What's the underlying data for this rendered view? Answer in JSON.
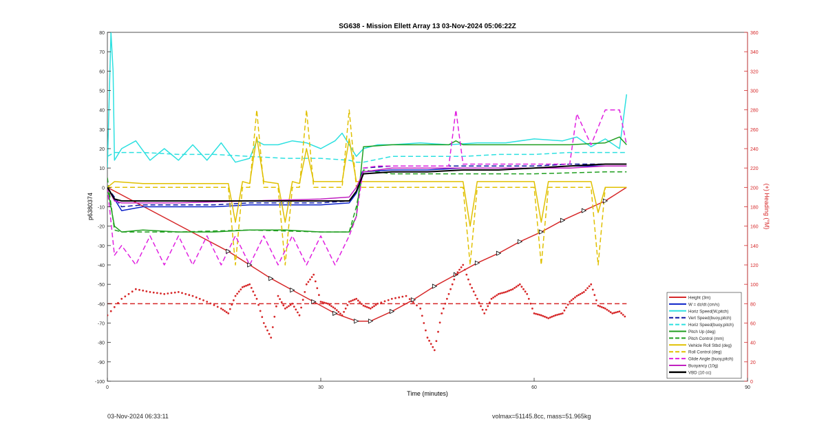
{
  "footer": {
    "left": "03-Nov-2024 06:33:11",
    "right": "volmax=51145.8cc, mass=51.965kg"
  },
  "chart_data": {
    "type": "line",
    "title": "SG638 - Mission Ellett Array 13 03-Nov-2024 05:06:22Z",
    "xlabel": "Time (minutes)",
    "ylabel": "p6380374",
    "y2label": "(+) Heading (°M)",
    "xlim": [
      0,
      90
    ],
    "ylim": [
      -100,
      80
    ],
    "y2lim": [
      0,
      360
    ],
    "xticks": [
      0,
      30,
      60,
      90
    ],
    "yticks": [
      -100,
      -90,
      -80,
      -70,
      -60,
      -50,
      -40,
      -30,
      -20,
      -10,
      0,
      10,
      20,
      30,
      40,
      50,
      60,
      70,
      80
    ],
    "y2ticks": [
      0,
      20,
      40,
      60,
      80,
      100,
      120,
      140,
      160,
      180,
      200,
      220,
      240,
      260,
      280,
      300,
      320,
      340,
      360
    ],
    "colors": {
      "right_axis": "#d62728"
    },
    "legend_position": "bottom-right",
    "series": [
      {
        "name": "Height (3m)",
        "color": "#d62728",
        "style": "solid",
        "width": 1.5,
        "x": [
          0,
          17,
          20,
          23,
          26,
          29,
          32,
          35,
          37,
          40,
          43,
          46,
          49,
          52,
          55,
          58,
          61,
          64,
          67,
          70,
          73
        ],
        "y": [
          0,
          -33,
          -40,
          -47,
          -53,
          -59,
          -65,
          -69,
          -69,
          -64,
          -58,
          -51,
          -45,
          -39,
          -34,
          -28,
          -23,
          -17,
          -12,
          -7,
          0
        ]
      },
      {
        "name": "W = dz/dt (cm/s)",
        "color": "#0a20c8",
        "style": "solid",
        "width": 1.5,
        "x": [
          0,
          1,
          2,
          5,
          10,
          15,
          20,
          25,
          30,
          34,
          35,
          36,
          40,
          45,
          50,
          55,
          60,
          65,
          70,
          73
        ],
        "y": [
          0,
          -6,
          -12,
          -10,
          -10,
          -10,
          -9,
          -9,
          -9,
          -8,
          -3,
          8,
          9,
          9,
          10,
          10,
          10,
          11,
          11,
          11
        ]
      },
      {
        "name": "Horiz Speed(W,pitch)",
        "color": "#2ce0e0",
        "style": "solid",
        "width": 1.5,
        "x": [
          0,
          0.5,
          0.8,
          1,
          2,
          4,
          6,
          8,
          10,
          12,
          14,
          16,
          18,
          20,
          21,
          22,
          24,
          26,
          28,
          30,
          32,
          33,
          34,
          35,
          36,
          38,
          40,
          44,
          48,
          52,
          56,
          60,
          64,
          66,
          68,
          70,
          72,
          73
        ],
        "y": [
          10,
          80,
          60,
          14,
          20,
          24,
          14,
          20,
          14,
          22,
          14,
          23,
          13,
          15,
          24,
          22,
          22,
          24,
          23,
          20,
          24,
          28,
          22,
          16,
          20,
          22,
          22,
          23,
          22,
          23,
          23,
          25,
          24,
          26,
          21,
          25,
          20,
          48
        ]
      },
      {
        "name": "Vert Speed(buoy,pitch)",
        "color": "#0a14a0",
        "style": "dashed",
        "width": 1.5,
        "x": [
          0,
          1,
          2,
          5,
          10,
          15,
          20,
          25,
          30,
          34,
          35,
          36,
          40,
          45,
          50,
          55,
          60,
          65,
          70,
          73
        ],
        "y": [
          0,
          -5,
          -10,
          -9,
          -9,
          -9,
          -8,
          -8,
          -8,
          -7,
          -2,
          10,
          11,
          11,
          11,
          11,
          11,
          12,
          12,
          12
        ]
      },
      {
        "name": "Horiz Speed(buoy,pitch)",
        "color": "#2ce0e0",
        "style": "dashed",
        "width": 1.5,
        "x": [
          0,
          1,
          5,
          10,
          15,
          20,
          25,
          30,
          34,
          35,
          36,
          40,
          45,
          50,
          55,
          60,
          65,
          70,
          73
        ],
        "y": [
          16,
          18,
          18,
          17,
          17,
          16,
          15,
          15,
          14,
          13,
          13,
          16,
          16,
          16,
          17,
          17,
          18,
          18,
          18
        ]
      },
      {
        "name": "Pitch Up (deg)",
        "color": "#1f9e1f",
        "style": "solid",
        "width": 1.5,
        "x": [
          0,
          1,
          2,
          5,
          10,
          15,
          20,
          25,
          30,
          34,
          35,
          36,
          40,
          45,
          48,
          49,
          50,
          55,
          60,
          65,
          70,
          72,
          73
        ],
        "y": [
          0,
          -20,
          -23,
          -22,
          -23,
          -23,
          -22,
          -22,
          -23,
          -23,
          -15,
          21,
          22,
          22,
          22,
          24,
          22,
          22,
          22,
          22,
          23,
          26,
          22
        ]
      },
      {
        "name": "Pitch Control (mm)",
        "color": "#1f9e1f",
        "style": "dashed",
        "width": 1.5,
        "x": [
          0,
          1,
          2,
          10,
          20,
          30,
          34,
          35,
          36,
          40,
          50,
          60,
          70,
          73
        ],
        "y": [
          5,
          -22,
          -23,
          -23,
          -22,
          -23,
          -23,
          -10,
          9,
          7,
          7,
          7,
          8,
          8
        ]
      },
      {
        "name": "Vehicle Roll Stbd (deg)",
        "color": "#e0c000",
        "style": "solid",
        "width": 1.5,
        "x": [
          0,
          1,
          5,
          10,
          17,
          18,
          19,
          20,
          21,
          22,
          24,
          25,
          26,
          27,
          28,
          29,
          30,
          33,
          34,
          35,
          36,
          40,
          45,
          50,
          51,
          52,
          53,
          55,
          60,
          61,
          62,
          63,
          65,
          68,
          69,
          70,
          73
        ],
        "y": [
          0,
          3,
          2,
          2,
          2,
          -18,
          3,
          2,
          26,
          3,
          2,
          -18,
          3,
          2,
          20,
          3,
          3,
          3,
          25,
          3,
          3,
          3,
          3,
          3,
          -20,
          3,
          3,
          3,
          3,
          -18,
          3,
          3,
          3,
          3,
          -13,
          0,
          0
        ]
      },
      {
        "name": "Roll Control (deg)",
        "color": "#e0c000",
        "style": "dashed",
        "width": 1.5,
        "x": [
          0,
          1,
          5,
          10,
          17,
          18,
          19,
          20,
          21,
          22,
          24,
          25,
          26,
          27,
          28,
          29,
          30,
          33,
          34,
          35,
          36,
          40,
          45,
          50,
          51,
          52,
          53,
          55,
          60,
          61,
          62,
          63,
          65,
          68,
          69,
          70,
          73
        ],
        "y": [
          0,
          0,
          0,
          0,
          0,
          -40,
          0,
          0,
          40,
          0,
          0,
          -40,
          0,
          0,
          40,
          0,
          0,
          0,
          40,
          0,
          0,
          0,
          0,
          0,
          -40,
          0,
          0,
          0,
          0,
          -40,
          0,
          0,
          0,
          0,
          -40,
          0,
          0
        ]
      },
      {
        "name": "Glide Angle (buoy,pitch)",
        "color": "#e020e0",
        "style": "dashed",
        "width": 1.5,
        "x": [
          0,
          1,
          2,
          4,
          6,
          8,
          10,
          12,
          14,
          16,
          18,
          20,
          22,
          24,
          26,
          28,
          30,
          32,
          34,
          35,
          36,
          38,
          40,
          45,
          48,
          49,
          50,
          55,
          60,
          65,
          66,
          68,
          70,
          72,
          73
        ],
        "y": [
          0,
          -35,
          -30,
          -40,
          -25,
          -40,
          -25,
          -40,
          -25,
          -40,
          -25,
          -40,
          -25,
          -40,
          -25,
          -40,
          -25,
          -40,
          -25,
          -15,
          10,
          11,
          11,
          11,
          11,
          40,
          12,
          12,
          12,
          12,
          38,
          22,
          40,
          40,
          22
        ]
      },
      {
        "name": "Buoyancy (10g)",
        "color": "#c020c0",
        "style": "solid",
        "width": 1.5,
        "x": [
          0,
          1,
          2,
          10,
          20,
          30,
          34,
          35,
          36,
          40,
          45,
          50,
          55,
          60,
          65,
          70,
          73
        ],
        "y": [
          0,
          -7,
          -8,
          -8,
          -7,
          -6,
          -5,
          0,
          8,
          10,
          10,
          10,
          10,
          10,
          10,
          11,
          11
        ]
      },
      {
        "name": "VBD (10 cc)",
        "color": "#000000",
        "style": "solid",
        "width": 2,
        "x": [
          0,
          1,
          2,
          10,
          20,
          30,
          34,
          35,
          36,
          40,
          45,
          50,
          55,
          60,
          65,
          70,
          73
        ],
        "y": [
          0,
          -6,
          -7,
          -7,
          -7,
          -7,
          -7,
          -2,
          7,
          8,
          8,
          9,
          9,
          10,
          11,
          12,
          12
        ]
      }
    ],
    "heading": {
      "color": "#d62728",
      "reference_value": 80,
      "x": [
        0,
        2,
        4,
        6,
        8,
        10,
        12,
        14,
        16,
        17,
        18,
        19,
        20,
        21,
        22,
        23,
        24,
        25,
        26,
        27,
        28,
        29,
        30,
        31,
        32,
        33,
        34,
        35,
        36,
        37,
        38,
        40,
        42,
        44,
        45,
        46,
        47,
        48,
        49,
        50,
        51,
        52,
        53,
        54,
        55,
        56,
        57,
        58,
        59,
        60,
        61,
        62,
        63,
        64,
        65,
        66,
        67,
        68,
        69,
        70,
        71,
        72,
        73
      ],
      "y": [
        68,
        85,
        95,
        92,
        90,
        92,
        88,
        82,
        75,
        70,
        88,
        97,
        100,
        85,
        60,
        45,
        88,
        75,
        80,
        68,
        100,
        110,
        82,
        80,
        75,
        68,
        82,
        85,
        78,
        75,
        80,
        85,
        88,
        75,
        45,
        32,
        70,
        90,
        110,
        120,
        100,
        85,
        70,
        85,
        90,
        92,
        95,
        100,
        90,
        70,
        68,
        65,
        68,
        70,
        82,
        88,
        92,
        100,
        78,
        75,
        70,
        72,
        65
      ]
    }
  }
}
